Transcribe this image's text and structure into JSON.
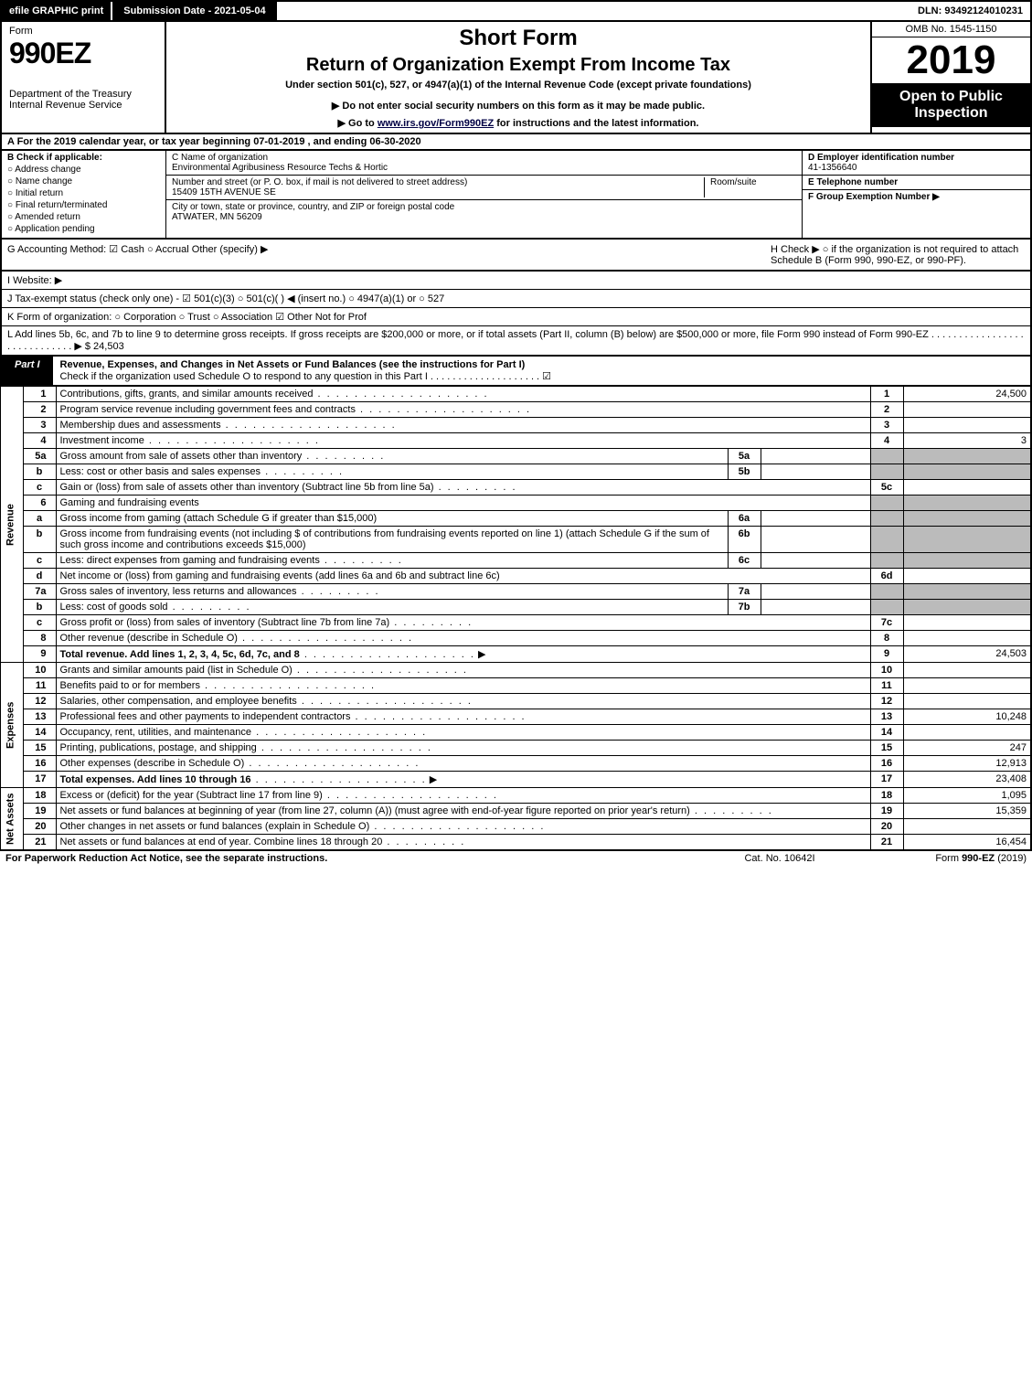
{
  "topbar": {
    "efile": "efile GRAPHIC print",
    "submission": "Submission Date - 2021-05-04",
    "dln": "DLN: 93492124010231"
  },
  "header": {
    "form": "Form",
    "formnum": "990EZ",
    "dept": "Department of the Treasury\nInternal Revenue Service",
    "shortform": "Short Form",
    "title": "Return of Organization Exempt From Income Tax",
    "under": "Under section 501(c), 527, or 4947(a)(1) of the Internal Revenue Code (except private foundations)",
    "donot": "▶ Do not enter social security numbers on this form as it may be made public.",
    "goto": "▶ Go to www.irs.gov/Form990EZ for instructions and the latest information.",
    "omb": "OMB No. 1545-1150",
    "year": "2019",
    "open": "Open to Public Inspection"
  },
  "rowA": "A  For the 2019 calendar year, or tax year beginning 07-01-2019 , and ending 06-30-2020",
  "colB": {
    "hdr": "B  Check if applicable:",
    "opts": [
      "Address change",
      "Name change",
      "Initial return",
      "Final return/terminated",
      "Amended return",
      "Application pending"
    ]
  },
  "colC": {
    "nameLbl": "C Name of organization",
    "name": "Environmental Agribusiness Resource Techs & Hortic",
    "addrLbl": "Number and street (or P. O. box, if mail is not delivered to street address)",
    "addr": "15409 15TH AVENUE SE",
    "roomLbl": "Room/suite",
    "cityLbl": "City or town, state or province, country, and ZIP or foreign postal code",
    "city": "ATWATER, MN  56209"
  },
  "colD": {
    "einLbl": "D Employer identification number",
    "ein": "41-1356640",
    "telLbl": "E Telephone number",
    "grpLbl": "F Group Exemption Number  ▶"
  },
  "g": "G Accounting Method:  ☑ Cash  ○ Accrual  Other (specify) ▶",
  "h": "H  Check ▶  ○  if the organization is not required to attach Schedule B (Form 990, 990-EZ, or 990-PF).",
  "i": "I Website: ▶",
  "j": "J Tax-exempt status (check only one) - ☑ 501(c)(3) ○ 501(c)( ) ◀ (insert no.) ○ 4947(a)(1) or ○ 527",
  "k": "K Form of organization:  ○ Corporation  ○ Trust  ○ Association  ☑ Other Not for Prof",
  "l": "L Add lines 5b, 6c, and 7b to line 9 to determine gross receipts. If gross receipts are $200,000 or more, or if total assets (Part II, column (B) below) are $500,000 or more, file Form 990 instead of Form 990-EZ .  .  .  .  .  .  .  .  .  .  .  .  .  .  .  .  .  .  .  .  .  .  .  .  .  .  .  .  .  ▶ $ 24,503",
  "part1": {
    "tag": "Part I",
    "title": "Revenue, Expenses, and Changes in Net Assets or Fund Balances (see the instructions for Part I)",
    "check": "Check if the organization used Schedule O to respond to any question in this Part I .  .  .  .  .  .  .  .  .  .  .  .  .  .  .  .  .  .  .  .  ☑"
  },
  "sides": {
    "rev": "Revenue",
    "exp": "Expenses",
    "na": "Net Assets"
  },
  "lines": {
    "1": {
      "d": "Contributions, gifts, grants, and similar amounts received",
      "v": "24,500"
    },
    "2": {
      "d": "Program service revenue including government fees and contracts",
      "v": ""
    },
    "3": {
      "d": "Membership dues and assessments",
      "v": ""
    },
    "4": {
      "d": "Investment income",
      "v": "3"
    },
    "5a": {
      "d": "Gross amount from sale of assets other than inventory",
      "sv": ""
    },
    "5b": {
      "d": "Less: cost or other basis and sales expenses",
      "sv": ""
    },
    "5c": {
      "d": "Gain or (loss) from sale of assets other than inventory (Subtract line 5b from line 5a)",
      "v": ""
    },
    "6": {
      "d": "Gaming and fundraising events"
    },
    "6a": {
      "d": "Gross income from gaming (attach Schedule G if greater than $15,000)",
      "sv": ""
    },
    "6b": {
      "d": "Gross income from fundraising events (not including $                        of contributions from fundraising events reported on line 1) (attach Schedule G if the sum of such gross income and contributions exceeds $15,000)",
      "sv": ""
    },
    "6c": {
      "d": "Less: direct expenses from gaming and fundraising events",
      "sv": ""
    },
    "6d": {
      "d": "Net income or (loss) from gaming and fundraising events (add lines 6a and 6b and subtract line 6c)",
      "v": ""
    },
    "7a": {
      "d": "Gross sales of inventory, less returns and allowances",
      "sv": ""
    },
    "7b": {
      "d": "Less: cost of goods sold",
      "sv": ""
    },
    "7c": {
      "d": "Gross profit or (loss) from sales of inventory (Subtract line 7b from line 7a)",
      "v": ""
    },
    "8": {
      "d": "Other revenue (describe in Schedule O)",
      "v": ""
    },
    "9": {
      "d": "Total revenue. Add lines 1, 2, 3, 4, 5c, 6d, 7c, and 8",
      "v": "24,503",
      "arrow": "▶"
    },
    "10": {
      "d": "Grants and similar amounts paid (list in Schedule O)",
      "v": ""
    },
    "11": {
      "d": "Benefits paid to or for members",
      "v": ""
    },
    "12": {
      "d": "Salaries, other compensation, and employee benefits",
      "v": ""
    },
    "13": {
      "d": "Professional fees and other payments to independent contractors",
      "v": "10,248"
    },
    "14": {
      "d": "Occupancy, rent, utilities, and maintenance",
      "v": ""
    },
    "15": {
      "d": "Printing, publications, postage, and shipping",
      "v": "247"
    },
    "16": {
      "d": "Other expenses (describe in Schedule O)",
      "v": "12,913"
    },
    "17": {
      "d": "Total expenses. Add lines 10 through 16",
      "v": "23,408",
      "arrow": "▶"
    },
    "18": {
      "d": "Excess or (deficit) for the year (Subtract line 17 from line 9)",
      "v": "1,095"
    },
    "19": {
      "d": "Net assets or fund balances at beginning of year (from line 27, column (A)) (must agree with end-of-year figure reported on prior year's return)",
      "v": "15,359"
    },
    "20": {
      "d": "Other changes in net assets or fund balances (explain in Schedule O)",
      "v": ""
    },
    "21": {
      "d": "Net assets or fund balances at end of year. Combine lines 18 through 20",
      "v": "16,454"
    }
  },
  "footer": {
    "l": "For Paperwork Reduction Act Notice, see the separate instructions.",
    "m": "Cat. No. 10642I",
    "r": "Form 990-EZ (2019)"
  },
  "colors": {
    "black": "#000000",
    "white": "#ffffff",
    "grey": "#bbbbbb",
    "link": "#004488"
  }
}
